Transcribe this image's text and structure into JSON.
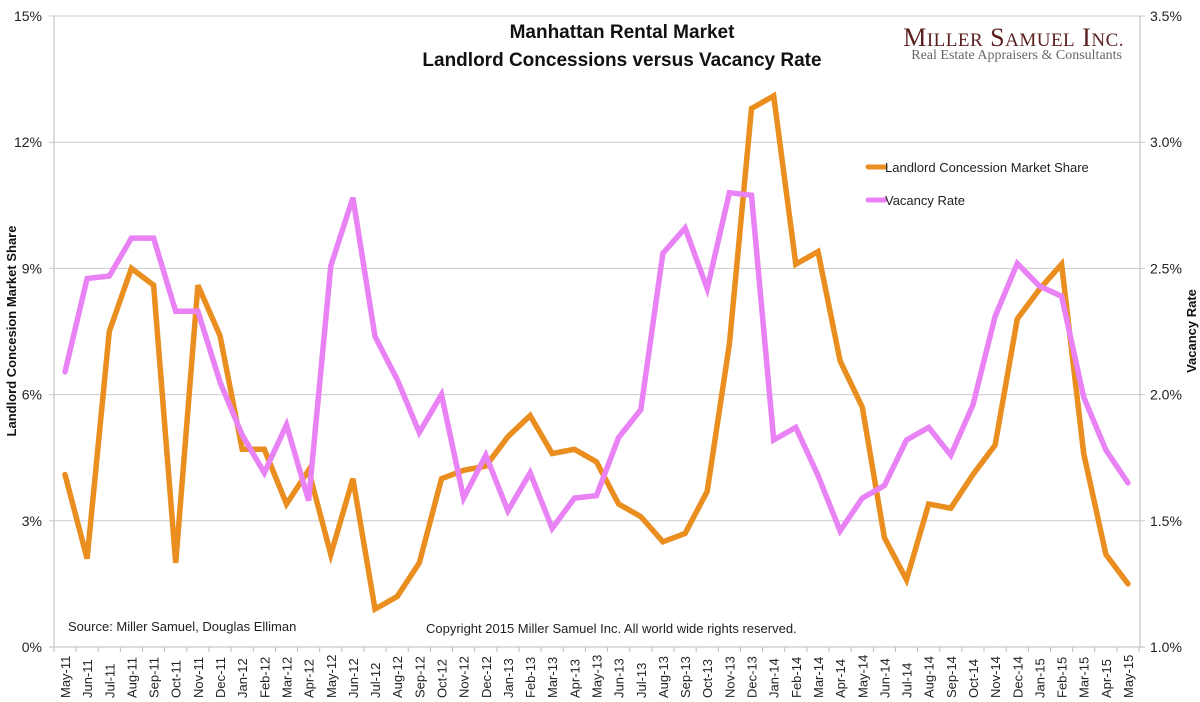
{
  "chart_data": {
    "type": "line",
    "title": "Manhattan Rental Market",
    "subtitle": "Landlord Concessions versus Vacancy Rate",
    "brand": {
      "name": "Miller Samuel Inc.",
      "tagline": "Real Estate Appraisers & Consultants",
      "color": "#5a1f1f"
    },
    "source_note": "Source: Miller Samuel, Douglas Elliman",
    "copyright_note": "Copyright 2015 Miller Samuel Inc.  All world wide rights reserved.",
    "xlabel": "",
    "ylabel_left": "Landlord Concesion Market Share",
    "ylabel_right": "Vacancy Rate",
    "y_left": {
      "range": [
        0,
        15
      ],
      "ticks": [
        0,
        3,
        6,
        9,
        12,
        15
      ],
      "tick_labels": [
        "0%",
        "3%",
        "6%",
        "9%",
        "12%",
        "15%"
      ]
    },
    "y_right": {
      "range": [
        1.0,
        3.5
      ],
      "ticks": [
        1.0,
        1.5,
        2.0,
        2.5,
        3.0,
        3.5
      ],
      "tick_labels": [
        "1.0%",
        "1.5%",
        "2.0%",
        "2.5%",
        "3.0%",
        "3.5%"
      ]
    },
    "grid": true,
    "legend_position": "top-right",
    "categories": [
      "May-11",
      "Jun-11",
      "Jul-11",
      "Aug-11",
      "Sep-11",
      "Oct-11",
      "Nov-11",
      "Dec-11",
      "Jan-12",
      "Feb-12",
      "Mar-12",
      "Apr-12",
      "May-12",
      "Jun-12",
      "Jul-12",
      "Aug-12",
      "Sep-12",
      "Oct-12",
      "Nov-12",
      "Dec-12",
      "Jan-13",
      "Feb-13",
      "Mar-13",
      "Apr-13",
      "May-13",
      "Jun-13",
      "Jul-13",
      "Aug-13",
      "Sep-13",
      "Oct-13",
      "Nov-13",
      "Dec-13",
      "Jan-14",
      "Feb-14",
      "Mar-14",
      "Apr-14",
      "May-14",
      "Jun-14",
      "Jul-14",
      "Aug-14",
      "Sep-14",
      "Oct-14",
      "Nov-14",
      "Dec-14",
      "Jan-15",
      "Feb-15",
      "Mar-15",
      "Apr-15",
      "May-15"
    ],
    "series": [
      {
        "name": "Landlord Concession Market Share",
        "axis": "left",
        "color": "#e98e1f",
        "values": [
          4.1,
          2.1,
          7.5,
          9.0,
          8.6,
          2.0,
          8.6,
          7.4,
          4.7,
          4.7,
          3.4,
          4.2,
          2.2,
          4.0,
          0.9,
          1.2,
          2.0,
          4.0,
          4.2,
          4.3,
          5.0,
          5.5,
          4.6,
          4.7,
          4.4,
          3.4,
          3.1,
          2.5,
          2.7,
          3.7,
          7.2,
          12.8,
          13.1,
          9.1,
          9.4,
          6.8,
          5.7,
          2.6,
          1.6,
          3.4,
          3.3,
          4.1,
          4.8,
          7.8,
          8.5,
          9.1,
          4.6,
          2.2,
          1.5
        ]
      },
      {
        "name": "Vacancy Rate",
        "axis": "right",
        "color": "#e882f5",
        "values": [
          2.09,
          2.46,
          2.47,
          2.62,
          2.62,
          2.33,
          2.33,
          2.05,
          1.84,
          1.69,
          1.88,
          1.58,
          2.51,
          2.78,
          2.23,
          2.06,
          1.85,
          2.0,
          1.59,
          1.76,
          1.54,
          1.69,
          1.47,
          1.59,
          1.6,
          1.83,
          1.94,
          2.56,
          2.66,
          2.42,
          2.8,
          2.79,
          1.82,
          1.87,
          1.68,
          1.46,
          1.59,
          1.64,
          1.82,
          1.87,
          1.76,
          1.96,
          2.31,
          2.52,
          2.43,
          2.39,
          1.99,
          1.78,
          1.65
        ]
      }
    ]
  }
}
